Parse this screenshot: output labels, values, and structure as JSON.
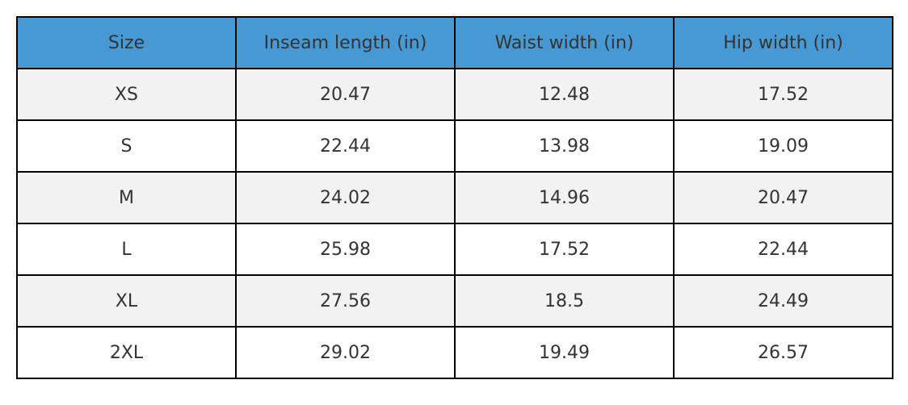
{
  "table": {
    "header": [
      "Size",
      "Inseam length (in)",
      "Waist width (in)",
      "Hip width (in)"
    ],
    "rows": [
      [
        "XS",
        "20.47",
        "12.48",
        "17.52"
      ],
      [
        "S",
        "22.44",
        "13.98",
        "19.09"
      ],
      [
        "M",
        "24.02",
        "14.96",
        "20.47"
      ],
      [
        "L",
        "25.98",
        "17.52",
        "22.44"
      ],
      [
        "XL",
        "27.56",
        "18.5",
        "24.49"
      ],
      [
        "2XL",
        "29.02",
        "19.49",
        "26.57"
      ]
    ]
  }
}
